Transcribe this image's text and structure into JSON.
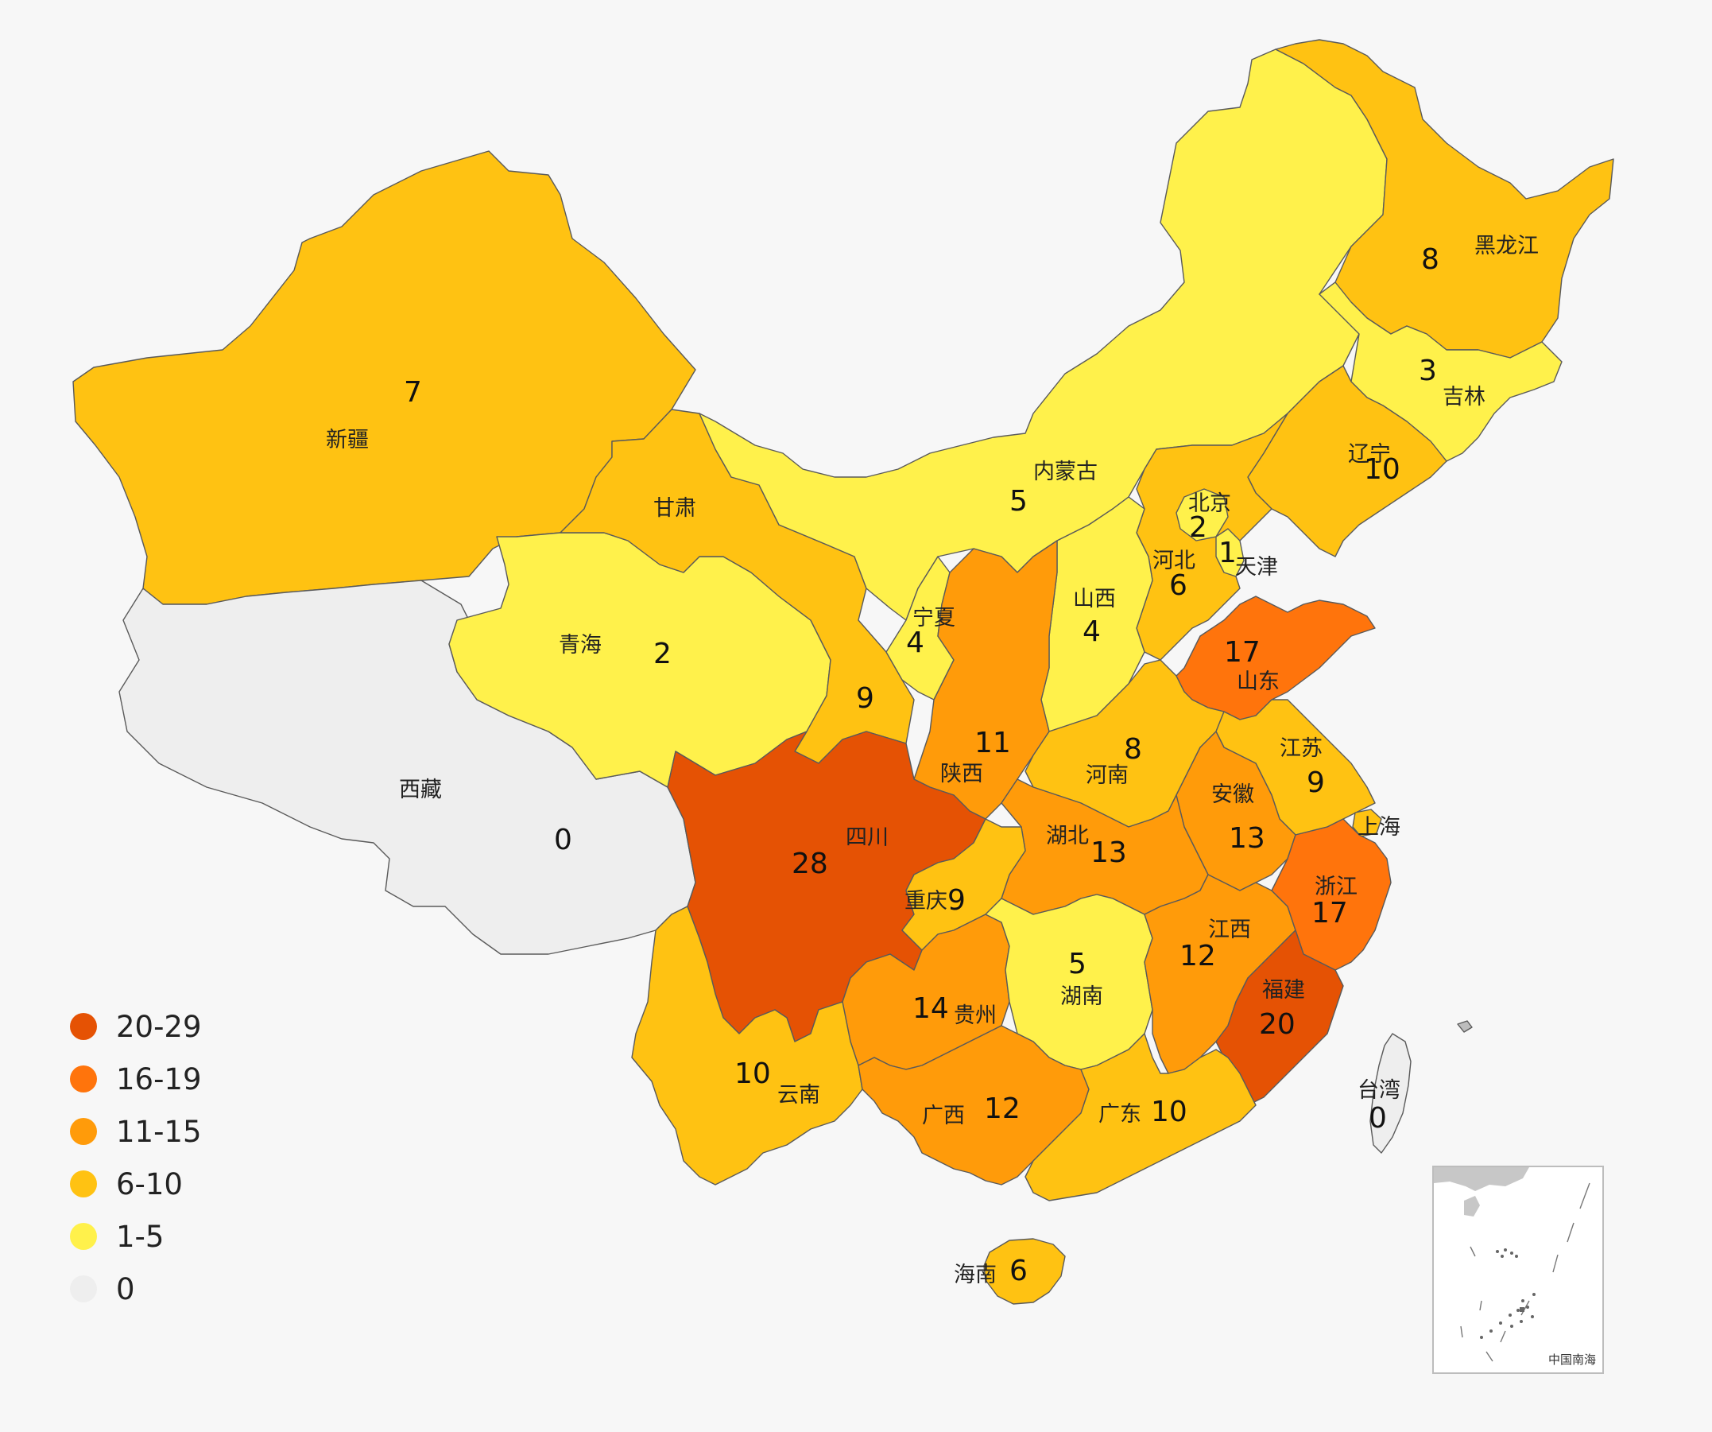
{
  "colors": {
    "0": "#eeeeee",
    "1-5": "#fff14b",
    "6-10": "#ffc212",
    "11-15": "#ff9b0a",
    "16-19": "#ff740c",
    "20-29": "#e55204",
    "water": "#f7f7f7"
  },
  "legend": [
    {
      "label": "20-29",
      "color": "#e55204"
    },
    {
      "label": "16-19",
      "color": "#ff740c"
    },
    {
      "label": "11-15",
      "color": "#ff9b0a"
    },
    {
      "label": "6-10",
      "color": "#ffc212"
    },
    {
      "label": "1-5",
      "color": "#fff14b"
    },
    {
      "label": "0",
      "color": "#eeeeee"
    }
  ],
  "provinces": [
    {
      "name": "新疆",
      "value": "7",
      "bin": "6-10"
    },
    {
      "name": "西藏",
      "value": "0",
      "bin": "0"
    },
    {
      "name": "青海",
      "value": "2",
      "bin": "1-5"
    },
    {
      "name": "甘肃",
      "value": "9",
      "bin": "6-10"
    },
    {
      "name": "内蒙古",
      "value": "5",
      "bin": "1-5"
    },
    {
      "name": "黑龙江",
      "value": "8",
      "bin": "6-10"
    },
    {
      "name": "吉林",
      "value": "3",
      "bin": "1-5"
    },
    {
      "name": "辽宁",
      "value": "10",
      "bin": "6-10"
    },
    {
      "name": "北京",
      "value": "2",
      "bin": "1-5"
    },
    {
      "name": "天津",
      "value": "1",
      "bin": "1-5"
    },
    {
      "name": "河北",
      "value": "6",
      "bin": "6-10"
    },
    {
      "name": "山西",
      "value": "4",
      "bin": "1-5"
    },
    {
      "name": "宁夏",
      "value": "4",
      "bin": "1-5"
    },
    {
      "name": "陕西",
      "value": "11",
      "bin": "11-15"
    },
    {
      "name": "山东",
      "value": "17",
      "bin": "16-19"
    },
    {
      "name": "河南",
      "value": "8",
      "bin": "6-10"
    },
    {
      "name": "江苏",
      "value": "9",
      "bin": "6-10"
    },
    {
      "name": "安徽",
      "value": "13",
      "bin": "11-15"
    },
    {
      "name": "上海",
      "value": "",
      "bin": "6-10"
    },
    {
      "name": "湖北",
      "value": "13",
      "bin": "11-15"
    },
    {
      "name": "四川",
      "value": "28",
      "bin": "20-29"
    },
    {
      "name": "重庆",
      "value": "9",
      "bin": "6-10"
    },
    {
      "name": "浙江",
      "value": "17",
      "bin": "16-19"
    },
    {
      "name": "江西",
      "value": "12",
      "bin": "11-15"
    },
    {
      "name": "湖南",
      "value": "5",
      "bin": "1-5"
    },
    {
      "name": "福建",
      "value": "20",
      "bin": "20-29"
    },
    {
      "name": "贵州",
      "value": "14",
      "bin": "11-15"
    },
    {
      "name": "云南",
      "value": "10",
      "bin": "6-10"
    },
    {
      "name": "广西",
      "value": "12",
      "bin": "11-15"
    },
    {
      "name": "广东",
      "value": "10",
      "bin": "6-10"
    },
    {
      "name": "海南",
      "value": "6",
      "bin": "6-10"
    },
    {
      "name": "台湾",
      "value": "0",
      "bin": "0"
    }
  ],
  "inset": {
    "label": "中国南海"
  }
}
